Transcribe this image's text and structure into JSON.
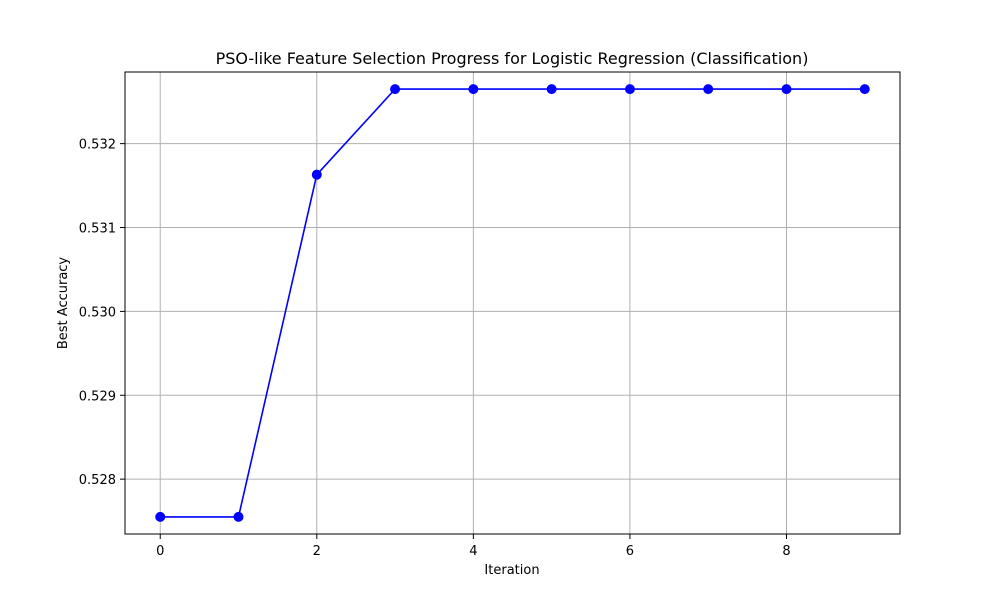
{
  "chart_data": {
    "type": "line",
    "title": "PSO-like Feature Selection Progress for Logistic Regression (Classification)",
    "xlabel": "Iteration",
    "ylabel": "Best Accuracy",
    "x": [
      0,
      1,
      2,
      3,
      4,
      5,
      6,
      7,
      8,
      9
    ],
    "series": [
      {
        "values": [
          0.52755,
          0.52755,
          0.53163,
          0.53265,
          0.53265,
          0.53265,
          0.53265,
          0.53265,
          0.53265,
          0.53265
        ],
        "color": "#0000ff",
        "marker": "circle"
      }
    ],
    "xticks": [
      0,
      2,
      4,
      6,
      8
    ],
    "yticks": [
      0.528,
      0.529,
      0.53,
      0.531,
      0.532
    ],
    "xtick_labels": [
      "0",
      "2",
      "4",
      "6",
      "8"
    ],
    "ytick_labels": [
      "0.528",
      "0.529",
      "0.530",
      "0.531",
      "0.532"
    ],
    "xlim": [
      -0.45,
      9.45
    ],
    "ylim": [
      0.527346,
      0.532854
    ],
    "grid": true,
    "legend": "none"
  }
}
